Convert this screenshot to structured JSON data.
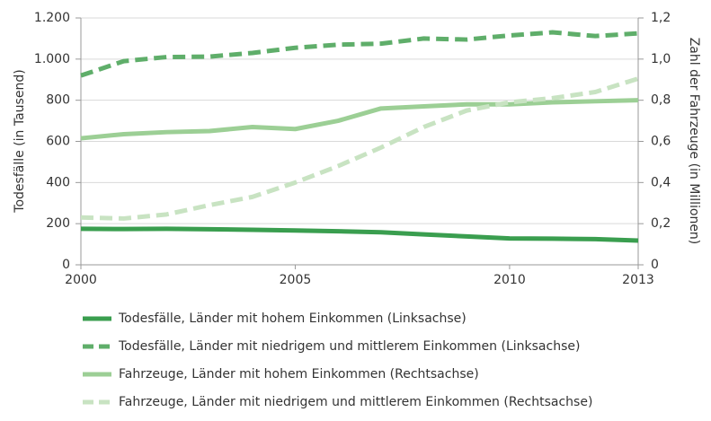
{
  "chart_data": {
    "type": "line",
    "y_label": "Todesfälle (in Tausend)",
    "y2_label": "Zahl der Fahrzeuge (in Millionen)",
    "x": [
      2000,
      2001,
      2002,
      2003,
      2004,
      2005,
      2006,
      2007,
      2008,
      2009,
      2010,
      2011,
      2012,
      2013
    ],
    "xlim": [
      2000,
      2013
    ],
    "xticks": [
      2000,
      2005,
      2010,
      2013
    ],
    "ylim": [
      0,
      1200
    ],
    "yticks": [
      0,
      200,
      400,
      600,
      800,
      {
        "value": 1000,
        "label": "1.000"
      },
      {
        "value": 1200,
        "label": "1.200"
      }
    ],
    "y2lim": [
      0,
      1.2
    ],
    "y2ticks": [
      0,
      {
        "value": 0.2,
        "label": "0,2"
      },
      {
        "value": 0.4,
        "label": "0,4"
      },
      {
        "value": 0.6,
        "label": "0,6"
      },
      {
        "value": 0.8,
        "label": "0,8"
      },
      {
        "value": 1.0,
        "label": "1,0"
      },
      {
        "value": 1.2,
        "label": "1,2"
      }
    ],
    "grid": true,
    "series": [
      {
        "name": "Todesfälle, Länder mit hohem Einkommen (Linksachse)",
        "color": "#3a9e4f",
        "dashed": false,
        "values": [
          175,
          174,
          175,
          173,
          170,
          167,
          163,
          158,
          148,
          138,
          128,
          127,
          125,
          118
        ]
      },
      {
        "name": "Todesfälle, Länder mit niedrigem und mittlerem Einkommen (Linksachse)",
        "color": "#5fae6a",
        "dashed": true,
        "values": [
          920,
          990,
          1010,
          1012,
          1030,
          1055,
          1070,
          1075,
          1100,
          1095,
          1115,
          1130,
          1112,
          1125
        ]
      },
      {
        "name": "Fahrzeuge, Länder mit hohem Einkommen (Rechtsachse)",
        "color": "#9ccf95",
        "dashed": false,
        "axis": "y2",
        "values": [
          0.615,
          0.635,
          0.645,
          0.65,
          0.67,
          0.66,
          0.7,
          0.76,
          0.77,
          0.78,
          0.78,
          0.79,
          0.795,
          0.8
        ]
      },
      {
        "name": "Fahrzeuge, Länder mit niedrigem und mittlerem Einkommen (Rechtsachse)",
        "color": "#c8e3c2",
        "dashed": true,
        "axis": "y2",
        "values": [
          0.23,
          0.225,
          0.245,
          0.29,
          0.33,
          0.4,
          0.48,
          0.57,
          0.67,
          0.75,
          0.79,
          0.81,
          0.84,
          0.905
        ]
      }
    ]
  }
}
